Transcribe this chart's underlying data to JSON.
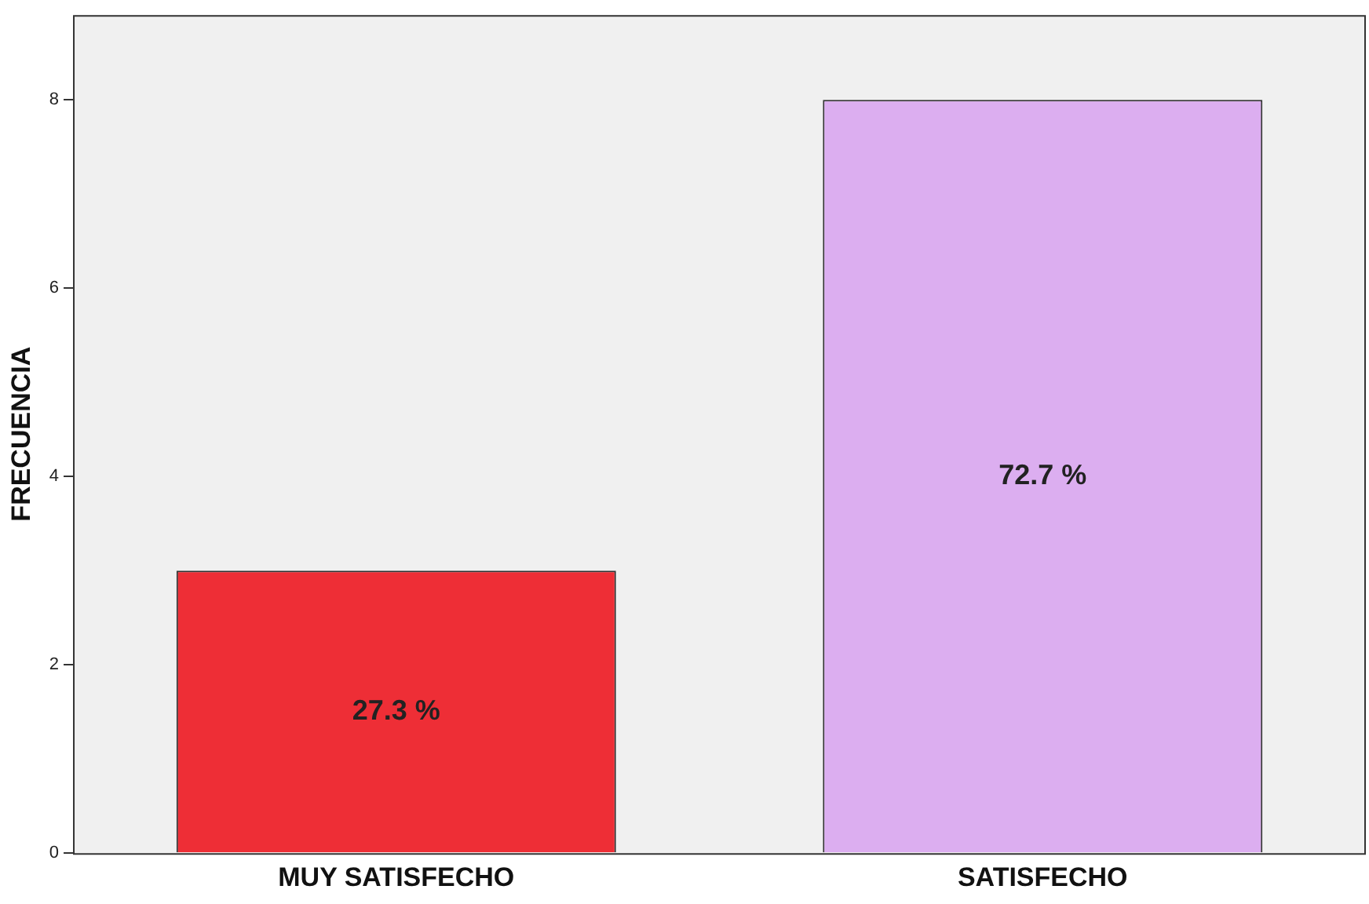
{
  "chart_data": {
    "type": "bar",
    "ylabel": "FRECUENCIA",
    "categories": [
      "MUY SATISFECHO",
      "SATISFECHO"
    ],
    "values": [
      3,
      8
    ],
    "colors": [
      "#ee2e36",
      "#dcaef0"
    ],
    "annotations": [
      "27.3 %",
      "72.7 %"
    ],
    "ylim": [
      0,
      8.9
    ],
    "yticks": [
      0,
      2,
      4,
      6,
      8
    ],
    "grid": false,
    "legend": false
  }
}
